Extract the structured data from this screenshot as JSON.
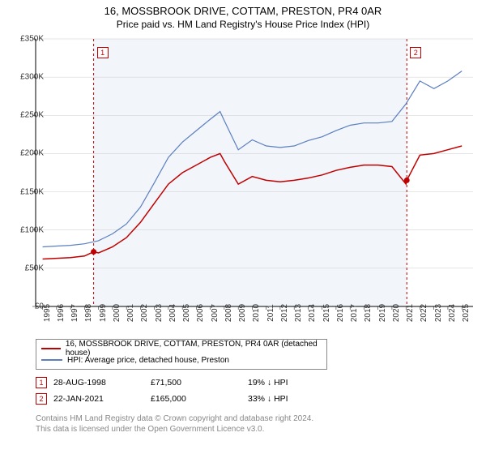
{
  "title_line1": "16, MOSSBROOK DRIVE, COTTAM, PRESTON, PR4 0AR",
  "title_line2": "Price paid vs. HM Land Registry's House Price Index (HPI)",
  "chart": {
    "type": "line",
    "background_color": "#ffffff",
    "shaded_band_color": "#f2f5fa",
    "shaded_band_x": [
      1998.65,
      2021.06
    ],
    "axis_color": "#000000",
    "grid_color": "#cccccc",
    "x_range": [
      1994.5,
      2025.8
    ],
    "y_range": [
      0,
      350000
    ],
    "y_ticks": [
      0,
      50000,
      100000,
      150000,
      200000,
      250000,
      300000,
      350000
    ],
    "y_tick_labels": [
      "£0",
      "£50K",
      "£100K",
      "£150K",
      "£200K",
      "£250K",
      "£300K",
      "£350K"
    ],
    "x_ticks": [
      1995,
      1996,
      1997,
      1998,
      1999,
      2000,
      2001,
      2002,
      2003,
      2004,
      2005,
      2006,
      2007,
      2008,
      2009,
      2010,
      2011,
      2012,
      2013,
      2014,
      2015,
      2016,
      2017,
      2018,
      2019,
      2020,
      2021,
      2022,
      2023,
      2024,
      2025
    ],
    "tick_fontsize": 10,
    "series": [
      {
        "name": "16, MOSSBROOK DRIVE, COTTAM, PRESTON, PR4 0AR (detached house)",
        "color": "#c00000",
        "line_width": 1.5,
        "x": [
          1995,
          1996,
          1997,
          1998,
          1998.65,
          1999,
          2000,
          2001,
          2002,
          2003,
          2004,
          2005,
          2006,
          2007,
          2007.7,
          2008,
          2009,
          2010,
          2011,
          2012,
          2013,
          2014,
          2015,
          2016,
          2017,
          2018,
          2019,
          2020,
          2021,
          2021.06,
          2022,
          2023,
          2024,
          2025
        ],
        "y": [
          62000,
          63000,
          64000,
          66000,
          71500,
          70000,
          78000,
          90000,
          110000,
          135000,
          160000,
          175000,
          185000,
          195000,
          200000,
          190000,
          160000,
          170000,
          165000,
          163000,
          165000,
          168000,
          172000,
          178000,
          182000,
          185000,
          185000,
          183000,
          160000,
          165000,
          198000,
          200000,
          205000,
          210000
        ]
      },
      {
        "name": "HPI: Average price, detached house, Preston",
        "color": "#5b7fbf",
        "line_width": 1.2,
        "x": [
          1995,
          1996,
          1997,
          1998,
          1999,
          2000,
          2001,
          2002,
          2003,
          2004,
          2005,
          2006,
          2007,
          2007.7,
          2008,
          2009,
          2010,
          2011,
          2012,
          2013,
          2014,
          2015,
          2016,
          2017,
          2018,
          2019,
          2020,
          2021,
          2022,
          2023,
          2024,
          2025
        ],
        "y": [
          78000,
          79000,
          80000,
          82000,
          86000,
          95000,
          108000,
          130000,
          162000,
          195000,
          215000,
          230000,
          245000,
          255000,
          243000,
          205000,
          218000,
          210000,
          208000,
          210000,
          217000,
          222000,
          230000,
          237000,
          240000,
          240000,
          242000,
          265000,
          295000,
          285000,
          295000,
          308000
        ]
      }
    ],
    "event_markers": [
      {
        "id": "1",
        "x": 1998.65,
        "y": 71500,
        "vline_color": "#c00000",
        "vline_dash": "3,3"
      },
      {
        "id": "2",
        "x": 2021.06,
        "y": 165000,
        "vline_color": "#c00000",
        "vline_dash": "3,3"
      }
    ],
    "marker_dot_color": "#c00000",
    "marker_dot_radius": 3.5
  },
  "legend": {
    "items": [
      {
        "color": "#c00000",
        "label": "16, MOSSBROOK DRIVE, COTTAM, PRESTON, PR4 0AR (detached house)"
      },
      {
        "color": "#5b7fbf",
        "label": "HPI: Average price, detached house, Preston"
      }
    ]
  },
  "marker_table": {
    "rows": [
      {
        "id": "1",
        "date": "28-AUG-1998",
        "price": "£71,500",
        "delta": "19% ↓ HPI"
      },
      {
        "id": "2",
        "date": "22-JAN-2021",
        "price": "£165,000",
        "delta": "33% ↓ HPI"
      }
    ]
  },
  "footer_line1": "Contains HM Land Registry data © Crown copyright and database right 2024.",
  "footer_line2": "This data is licensed under the Open Government Licence v3.0."
}
